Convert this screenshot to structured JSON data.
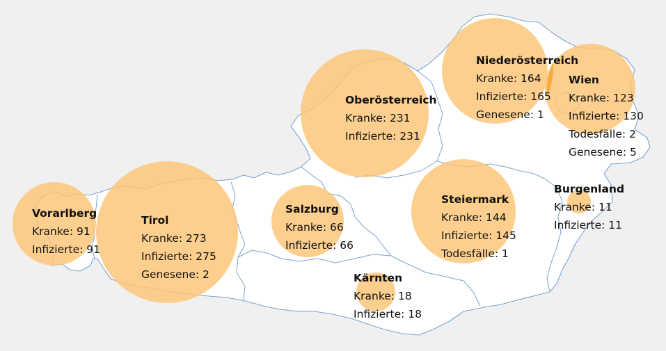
{
  "colors": {
    "background": "#f0f0f0",
    "state_fill": "#ffffff",
    "border": "#7aa3cf",
    "bubble": "#fcc575",
    "bubble_overlap": "#f9ab3c",
    "text": "#111111"
  },
  "regions": [
    {
      "id": "vorarlberg",
      "name": "Vorarlberg",
      "stats": [
        {
          "label": "Kranke",
          "value": 91
        },
        {
          "label": "Infizierte",
          "value": 91
        }
      ]
    },
    {
      "id": "tirol",
      "name": "Tirol",
      "stats": [
        {
          "label": "Kranke",
          "value": 273
        },
        {
          "label": "Infizierte",
          "value": 275
        },
        {
          "label": "Genesene",
          "value": 2
        }
      ]
    },
    {
      "id": "salzburg",
      "name": "Salzburg",
      "stats": [
        {
          "label": "Kranke",
          "value": 66
        },
        {
          "label": "Infizierte",
          "value": 66
        }
      ]
    },
    {
      "id": "oberoesterreich",
      "name": "Oberösterreich",
      "stats": [
        {
          "label": "Kranke",
          "value": 231
        },
        {
          "label": "Infizierte",
          "value": 231
        }
      ]
    },
    {
      "id": "niederoesterreich",
      "name": "Niederösterreich",
      "stats": [
        {
          "label": "Kranke",
          "value": 164
        },
        {
          "label": "Infizierte",
          "value": 165
        },
        {
          "label": "Genesene",
          "value": 1
        }
      ]
    },
    {
      "id": "wien",
      "name": "Wien",
      "stats": [
        {
          "label": "Kranke",
          "value": 123
        },
        {
          "label": "Infizierte",
          "value": 130
        },
        {
          "label": "Todesfälle",
          "value": 2
        },
        {
          "label": "Genesene",
          "value": 5
        }
      ]
    },
    {
      "id": "steiermark",
      "name": "Steiermark",
      "stats": [
        {
          "label": "Kranke",
          "value": 144
        },
        {
          "label": "Infizierte",
          "value": 145
        },
        {
          "label": "Todesfälle",
          "value": 1
        }
      ]
    },
    {
      "id": "burgenland",
      "name": "Burgenland",
      "stats": [
        {
          "label": "Kranke",
          "value": 11
        },
        {
          "label": "Infizierte",
          "value": 11
        }
      ]
    },
    {
      "id": "kaernten",
      "name": "Kärnten",
      "stats": [
        {
          "label": "Kranke",
          "value": 18
        },
        {
          "label": "Infizierte",
          "value": 18
        }
      ]
    }
  ]
}
